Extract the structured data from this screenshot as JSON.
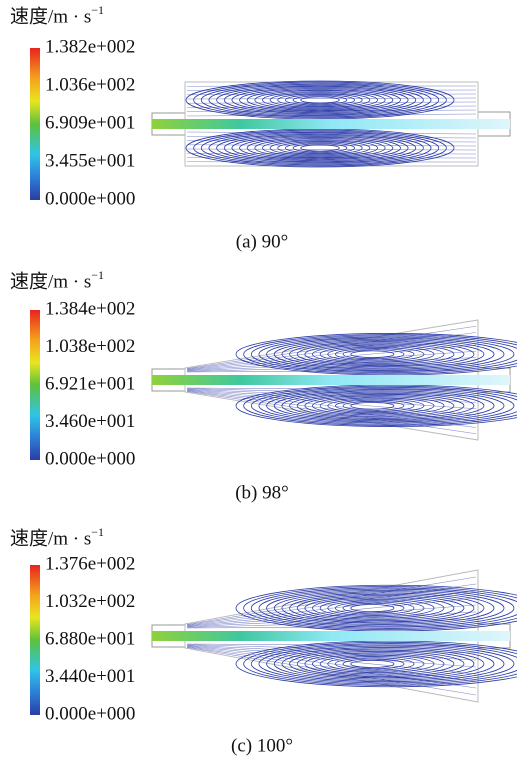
{
  "panels": [
    {
      "legend_title": "速度/m · s",
      "legend_exponent": "−1",
      "ticks": [
        "1.382e+002",
        "1.036e+002",
        "6.909e+001",
        "3.455e+001",
        "0.000e+000"
      ],
      "caption": "(a) 90°"
    },
    {
      "legend_title": "速度/m · s",
      "legend_exponent": "−1",
      "ticks": [
        "1.384e+002",
        "1.038e+002",
        "6.921e+001",
        "3.460e+001",
        "0.000e+000"
      ],
      "caption": "(b) 98°"
    },
    {
      "legend_title": "速度/m · s",
      "legend_exponent": "−1",
      "ticks": [
        "1.376e+002",
        "1.032e+002",
        "6.880e+001",
        "3.440e+001",
        "0.000e+000"
      ],
      "caption": "(c) 100°"
    }
  ]
}
